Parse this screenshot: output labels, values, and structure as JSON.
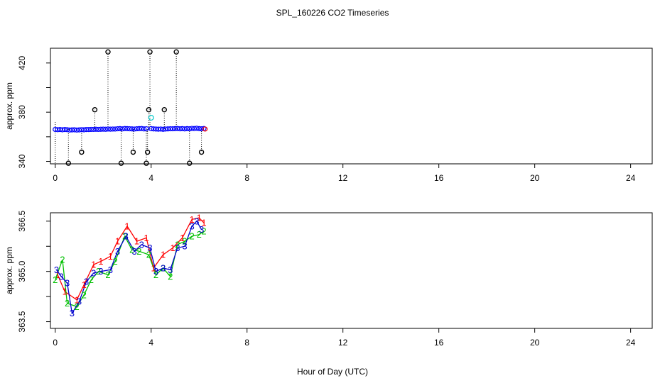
{
  "title": "SPL_160226  CO2 Timeseries",
  "xlabel": "Hour of Day (UTC)",
  "chart_data": [
    {
      "type": "scatter",
      "panel": "top",
      "ylabel": "approx. ppm",
      "xlim": [
        -0.2,
        24.9
      ],
      "ylim": [
        338,
        432
      ],
      "xticks": [
        0,
        4,
        8,
        12,
        16,
        20,
        24
      ],
      "yticks": [
        340,
        360,
        380,
        400,
        420
      ],
      "ytick_labels": [
        "340",
        "",
        "380",
        "",
        "420"
      ],
      "grid": false,
      "series": [
        {
          "marker": "blue-circles",
          "color": "#0000ff",
          "x": [
            0.0,
            0.1,
            0.2,
            0.3,
            0.4,
            0.5,
            0.6,
            0.7,
            0.8,
            0.9,
            1.0,
            1.1,
            1.2,
            1.3,
            1.4,
            1.5,
            1.6,
            1.7,
            1.8,
            1.9,
            2.0,
            2.1,
            2.2,
            2.3,
            2.4,
            2.5,
            2.6,
            2.7,
            2.8,
            2.9,
            3.0,
            3.1,
            3.2,
            3.3,
            3.4,
            3.5,
            3.6,
            3.7,
            3.8,
            4.0,
            4.1,
            4.2,
            4.3,
            4.4,
            4.5,
            4.6,
            4.7,
            4.8,
            4.9,
            5.0,
            5.1,
            5.2,
            5.3,
            5.4,
            5.5,
            5.6,
            5.7,
            5.8,
            5.9,
            6.0,
            6.1,
            6.2
          ],
          "y": [
            366.0,
            365.8,
            365.9,
            365.7,
            365.9,
            365.8,
            365.5,
            365.6,
            365.7,
            365.5,
            365.6,
            365.8,
            365.7,
            365.9,
            365.9,
            366.0,
            366.0,
            366.1,
            366.0,
            366.1,
            366.2,
            366.1,
            366.3,
            366.2,
            366.3,
            366.3,
            366.5,
            366.6,
            366.4,
            366.7,
            366.6,
            366.5,
            366.4,
            366.3,
            366.5,
            366.6,
            366.7,
            366.4,
            366.5,
            366.6,
            366.4,
            366.3,
            366.2,
            366.3,
            366.1,
            366.3,
            366.4,
            366.5,
            366.5,
            366.6,
            366.7,
            366.5,
            366.6,
            366.4,
            366.6,
            366.5,
            366.8,
            366.7,
            366.9,
            366.6,
            366.5,
            366.7
          ]
        },
        {
          "marker": "black-circles-with-dotted-drop",
          "color": "#000000",
          "x": [
            0.55,
            1.1,
            1.65,
            2.2,
            2.75,
            3.25,
            3.8,
            3.85,
            3.9,
            3.95,
            4.55,
            5.05,
            5.6,
            6.1
          ],
          "y": [
            338.5,
            347.5,
            382.0,
            429.0,
            338.5,
            347.5,
            338.5,
            347.5,
            382.0,
            429.0,
            382.0,
            429.0,
            338.5,
            347.5
          ],
          "base": 366.2
        },
        {
          "marker": "cyan-circle",
          "color": "#00c8c8",
          "x": [
            4.0
          ],
          "y": [
            375.5
          ]
        },
        {
          "marker": "red-circle",
          "color": "#ff0000",
          "x": [
            6.25
          ],
          "y": [
            366.3
          ]
        }
      ]
    },
    {
      "type": "line",
      "panel": "bottom",
      "ylabel": "approx. ppm",
      "xlim": [
        -0.2,
        24.9
      ],
      "ylim": [
        363.3,
        366.75
      ],
      "xticks": [
        0,
        4,
        8,
        12,
        16,
        20,
        24
      ],
      "yticks": [
        363.5,
        364.25,
        365.0,
        365.75,
        366.5
      ],
      "ytick_labels": [
        "363.5",
        "",
        "365.0",
        "",
        "366.5"
      ],
      "grid": false,
      "series": [
        {
          "name": "1",
          "color": "#ff0000",
          "x": [
            0.1,
            0.4,
            0.9,
            1.2,
            1.6,
            1.9,
            2.3,
            2.6,
            3.0,
            3.4,
            3.8,
            4.1,
            4.5,
            4.9,
            5.3,
            5.7,
            6.0,
            6.2
          ],
          "y": [
            364.9,
            364.4,
            364.15,
            364.6,
            365.2,
            365.3,
            365.45,
            365.9,
            366.35,
            365.9,
            366.0,
            365.1,
            365.5,
            365.7,
            366.0,
            366.55,
            366.6,
            366.45
          ]
        },
        {
          "name": "2",
          "color": "#00c000",
          "x": [
            0.0,
            0.3,
            0.5,
            0.9,
            1.2,
            1.5,
            1.8,
            2.2,
            2.5,
            2.9,
            3.2,
            3.5,
            3.9,
            4.2,
            4.5,
            4.8,
            5.1,
            5.4,
            5.7,
            6.0,
            6.2
          ],
          "y": [
            364.75,
            365.35,
            364.05,
            363.95,
            364.3,
            364.75,
            365.0,
            364.9,
            365.3,
            366.05,
            365.65,
            365.6,
            365.5,
            364.9,
            365.1,
            364.85,
            365.8,
            365.9,
            366.05,
            366.1,
            366.2
          ]
        },
        {
          "name": "3",
          "color": "#0000cc",
          "x": [
            0.05,
            0.25,
            0.5,
            0.7,
            1.0,
            1.3,
            1.6,
            1.9,
            2.3,
            2.6,
            2.95,
            3.3,
            3.6,
            3.95,
            4.2,
            4.5,
            4.8,
            5.1,
            5.4,
            5.7,
            5.9,
            6.1
          ],
          "y": [
            365.05,
            364.85,
            364.65,
            363.75,
            364.1,
            364.7,
            364.95,
            365.0,
            365.05,
            365.6,
            366.05,
            365.6,
            365.8,
            365.7,
            365.0,
            365.1,
            365.05,
            365.7,
            365.75,
            366.35,
            366.5,
            366.25
          ]
        }
      ]
    }
  ]
}
